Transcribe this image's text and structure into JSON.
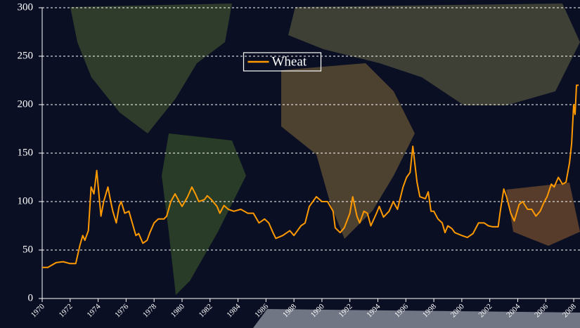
{
  "chart_data": {
    "type": "line",
    "xlim": [
      1970,
      2008.35
    ],
    "xticks": [
      1970,
      1972,
      1974,
      1976,
      1978,
      1980,
      1982,
      1984,
      1986,
      1988,
      1990,
      1992,
      1994,
      1996,
      1998,
      2000,
      2002,
      2004,
      2006,
      2008
    ],
    "ylim": [
      0,
      300
    ],
    "yticks": [
      0,
      50,
      100,
      150,
      200,
      250,
      300
    ],
    "grid": true,
    "legend_position": "upper center",
    "x": [
      1970.0,
      1970.4,
      1971.0,
      1971.5,
      1972.0,
      1972.4,
      1972.7,
      1972.9,
      1973.05,
      1973.3,
      1973.5,
      1973.7,
      1973.9,
      1974.2,
      1974.4,
      1974.7,
      1974.9,
      1975.05,
      1975.3,
      1975.5,
      1975.65,
      1975.9,
      1976.2,
      1976.5,
      1976.7,
      1976.9,
      1977.2,
      1977.5,
      1977.7,
      1978.0,
      1978.3,
      1978.7,
      1978.9,
      1979.2,
      1979.5,
      1979.8,
      1980.0,
      1980.4,
      1980.7,
      1980.95,
      1981.2,
      1981.6,
      1981.8,
      1982.1,
      1982.5,
      1982.7,
      1983.0,
      1983.3,
      1983.7,
      1984.2,
      1984.7,
      1985.1,
      1985.5,
      1985.9,
      1986.2,
      1986.5,
      1986.7,
      1987.2,
      1987.7,
      1988.0,
      1988.5,
      1988.8,
      1989.1,
      1989.35,
      1989.6,
      1990.0,
      1990.4,
      1990.8,
      1990.95,
      1991.3,
      1991.6,
      1992.0,
      1992.2,
      1992.5,
      1992.7,
      1993.0,
      1993.25,
      1993.5,
      1993.9,
      1994.1,
      1994.4,
      1994.8,
      1995.1,
      1995.4,
      1995.8,
      1996.05,
      1996.3,
      1996.5,
      1996.8,
      1997.0,
      1997.4,
      1997.6,
      1997.8,
      1998.0,
      1998.3,
      1998.6,
      1998.8,
      1999.0,
      1999.3,
      1999.5,
      2000.0,
      2000.4,
      2000.8,
      2001.2,
      2001.6,
      2001.9,
      2002.2,
      2002.6,
      2002.75,
      2003.0,
      2003.2,
      2003.5,
      2003.75,
      2004.1,
      2004.35,
      2004.7,
      2005.0,
      2005.3,
      2005.6,
      2005.9,
      2006.1,
      2006.4,
      2006.6,
      2006.9,
      2007.2,
      2007.45,
      2007.7,
      2007.85,
      2008.0,
      2008.1,
      2008.2,
      2008.35
    ],
    "series": [
      {
        "name": "Wheat",
        "color": "#ff9900",
        "values": [
          32,
          32,
          37,
          38,
          36,
          36,
          55,
          65,
          60,
          70,
          115,
          108,
          132,
          85,
          100,
          115,
          100,
          90,
          78,
          95,
          100,
          88,
          90,
          75,
          65,
          67,
          57,
          60,
          68,
          78,
          82,
          82,
          85,
          100,
          108,
          100,
          95,
          105,
          115,
          108,
          100,
          102,
          106,
          102,
          95,
          88,
          96,
          92,
          90,
          92,
          88,
          88,
          78,
          82,
          78,
          68,
          62,
          65,
          70,
          65,
          75,
          78,
          95,
          100,
          105,
          100,
          100,
          90,
          73,
          68,
          73,
          88,
          105,
          85,
          78,
          90,
          88,
          75,
          88,
          95,
          84,
          90,
          100,
          92,
          115,
          125,
          130,
          157,
          120,
          105,
          103,
          110,
          90,
          90,
          82,
          78,
          68,
          75,
          72,
          68,
          65,
          63,
          67,
          78,
          78,
          75,
          74,
          74,
          90,
          113,
          105,
          88,
          80,
          97,
          100,
          92,
          92,
          85,
          90,
          100,
          105,
          118,
          115,
          125,
          118,
          120,
          140,
          160,
          200,
          190,
          220,
          220
        ]
      }
    ]
  }
}
